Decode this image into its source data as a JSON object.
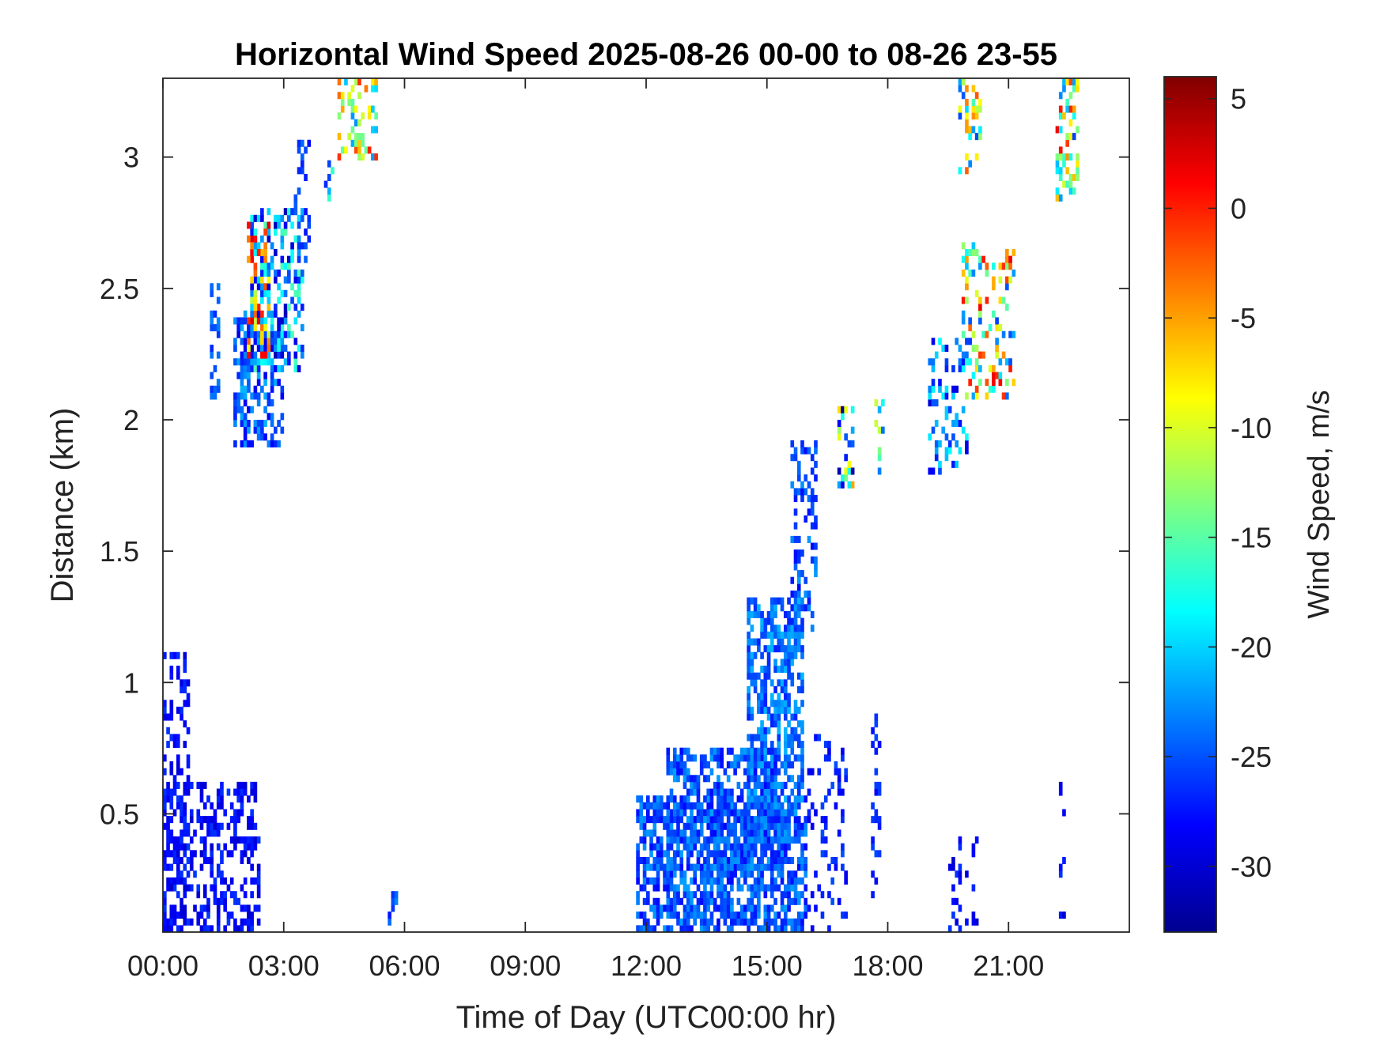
{
  "chart_data": {
    "type": "heatmap",
    "title": "Horizontal Wind Speed 2025-08-26 00-00 to 08-26 23-55",
    "xlabel": "Time of Day (UTC00:00 hr)",
    "ylabel": "Distance (km)",
    "colorbar_label": "Wind Speed, m/s",
    "xlim_hours": [
      0,
      24
    ],
    "ylim_km": [
      0.05,
      3.3
    ],
    "x_ticks": [
      {
        "value": 0,
        "label": "00:00"
      },
      {
        "value": 3,
        "label": "03:00"
      },
      {
        "value": 6,
        "label": "06:00"
      },
      {
        "value": 9,
        "label": "09:00"
      },
      {
        "value": 12,
        "label": "12:00"
      },
      {
        "value": 15,
        "label": "15:00"
      },
      {
        "value": 18,
        "label": "18:00"
      },
      {
        "value": 21,
        "label": "21:00"
      }
    ],
    "y_ticks": [
      {
        "value": 0.5,
        "label": "0.5"
      },
      {
        "value": 1,
        "label": "1"
      },
      {
        "value": 1.5,
        "label": "1.5"
      },
      {
        "value": 2,
        "label": "2"
      },
      {
        "value": 2.5,
        "label": "2.5"
      },
      {
        "value": 3,
        "label": "3"
      }
    ],
    "colorbar": {
      "range": [
        -33,
        6
      ],
      "colormap": "jet",
      "ticks": [
        {
          "value": 5,
          "label": "5"
        },
        {
          "value": 0,
          "label": "0"
        },
        {
          "value": -5,
          "label": "-5"
        },
        {
          "value": -10,
          "label": "-10"
        },
        {
          "value": -15,
          "label": "-15"
        },
        {
          "value": -20,
          "label": "-20"
        },
        {
          "value": -25,
          "label": "-25"
        },
        {
          "value": -30,
          "label": "-30"
        }
      ]
    },
    "grid": false,
    "regions": [
      {
        "x": [
          0,
          2.4
        ],
        "y": [
          0.05,
          0.6
        ],
        "density": 0.42,
        "value": -28,
        "spread": 2
      },
      {
        "x": [
          0,
          0.6
        ],
        "y": [
          0.05,
          1.1
        ],
        "density": 0.3,
        "value": -28,
        "spread": 2
      },
      {
        "x": [
          1.2,
          1.35
        ],
        "y": [
          2.1,
          2.5
        ],
        "density": 0.55,
        "value": -25,
        "spread": 2
      },
      {
        "x": [
          1.8,
          3.0
        ],
        "y": [
          1.9,
          2.4
        ],
        "density": 0.5,
        "value": -25,
        "spread": 4
      },
      {
        "x": [
          2.2,
          3.5
        ],
        "y": [
          2.2,
          2.8
        ],
        "density": 0.45,
        "value": -23,
        "spread": 8
      },
      {
        "x": [
          2.1,
          2.6
        ],
        "y": [
          2.25,
          2.75
        ],
        "density": 0.35,
        "value": -5,
        "spread": 8
      },
      {
        "x": [
          3.3,
          3.6
        ],
        "y": [
          2.6,
          3.05
        ],
        "density": 0.3,
        "value": -26,
        "spread": 2
      },
      {
        "x": [
          4.0,
          4.2
        ],
        "y": [
          2.85,
          3.0
        ],
        "density": 0.35,
        "value": -22,
        "spread": 6
      },
      {
        "x": [
          4.4,
          5.3
        ],
        "y": [
          3.0,
          3.3
        ],
        "density": 0.35,
        "value": -12,
        "spread": 12
      },
      {
        "x": [
          5.6,
          5.8
        ],
        "y": [
          0.05,
          0.2
        ],
        "density": 0.5,
        "value": -26,
        "spread": 3
      },
      {
        "x": [
          11.8,
          16.0
        ],
        "y": [
          0.05,
          0.55
        ],
        "density": 0.62,
        "value": -25,
        "spread": 3
      },
      {
        "x": [
          12.5,
          15.4
        ],
        "y": [
          0.3,
          0.75
        ],
        "density": 0.55,
        "value": -25,
        "spread": 3
      },
      {
        "x": [
          14.5,
          15.9
        ],
        "y": [
          0.5,
          1.3
        ],
        "density": 0.6,
        "value": -24,
        "spread": 3
      },
      {
        "x": [
          15.6,
          16.2
        ],
        "y": [
          1.2,
          1.9
        ],
        "density": 0.3,
        "value": -25,
        "spread": 3
      },
      {
        "x": [
          16.0,
          17.0
        ],
        "y": [
          0.05,
          0.8
        ],
        "density": 0.2,
        "value": -27,
        "spread": 2
      },
      {
        "x": [
          17.6,
          17.8
        ],
        "y": [
          0.05,
          0.9
        ],
        "density": 0.25,
        "value": -27,
        "spread": 2
      },
      {
        "x": [
          16.8,
          17.1
        ],
        "y": [
          1.75,
          2.05
        ],
        "density": 0.45,
        "value": -18,
        "spread": 14
      },
      {
        "x": [
          17.7,
          17.85
        ],
        "y": [
          1.8,
          2.1
        ],
        "density": 0.4,
        "value": -20,
        "spread": 10
      },
      {
        "x": [
          19.0,
          20.0
        ],
        "y": [
          1.8,
          2.3
        ],
        "density": 0.3,
        "value": -24,
        "spread": 6
      },
      {
        "x": [
          19.9,
          21.1
        ],
        "y": [
          2.1,
          2.65
        ],
        "density": 0.3,
        "value": -12,
        "spread": 14
      },
      {
        "x": [
          19.5,
          20.2
        ],
        "y": [
          0.05,
          0.4
        ],
        "density": 0.18,
        "value": -28,
        "spread": 2
      },
      {
        "x": [
          19.8,
          20.3
        ],
        "y": [
          2.95,
          3.3
        ],
        "density": 0.25,
        "value": -14,
        "spread": 12
      },
      {
        "x": [
          22.2,
          22.7
        ],
        "y": [
          2.85,
          3.3
        ],
        "density": 0.4,
        "value": -12,
        "spread": 14
      },
      {
        "x": [
          22.3,
          22.4
        ],
        "y": [
          0.05,
          0.6
        ],
        "density": 0.15,
        "value": -28,
        "spread": 2
      }
    ]
  }
}
